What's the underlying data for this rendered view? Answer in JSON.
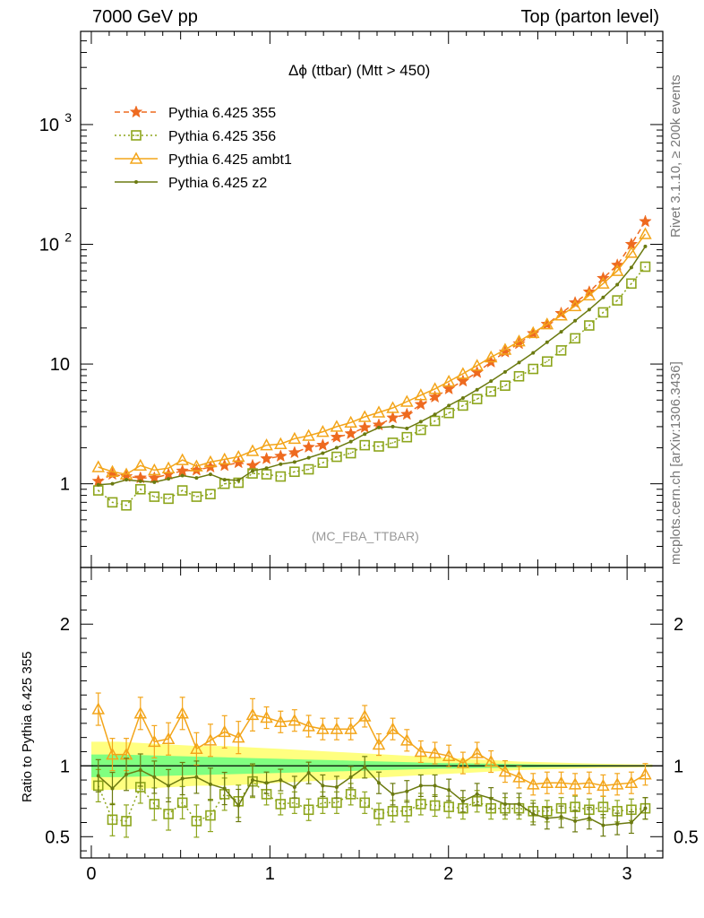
{
  "header": {
    "left": "7000 GeV pp",
    "right": "Top (parton level)"
  },
  "side": {
    "rivet": "Rivet 3.1.10, ≥ 200k events",
    "mcplots": "mcplots.cern.ch [arXiv:1306.3436]"
  },
  "watermark": "(MC_FBA_TTBAR)",
  "chart_data": {
    "type": "line",
    "title": "Δϕ (ttbar) (Mtt > 450)",
    "xlabel": "",
    "ylabel": "",
    "xlim": [
      -0.06,
      3.2
    ],
    "ylim": [
      0.2,
      6000
    ],
    "yscale": "log",
    "x_ticks": [
      "0",
      "1",
      "2",
      "3"
    ],
    "y_ticks": [
      "1",
      "10",
      "10^2",
      "10^3"
    ],
    "legend_position": "top-left",
    "x": [
      0.039,
      0.118,
      0.196,
      0.275,
      0.353,
      0.432,
      0.51,
      0.589,
      0.667,
      0.746,
      0.824,
      0.903,
      0.981,
      1.06,
      1.138,
      1.217,
      1.296,
      1.374,
      1.453,
      1.531,
      1.61,
      1.688,
      1.767,
      1.845,
      1.924,
      2.002,
      2.081,
      2.16,
      2.238,
      2.317,
      2.395,
      2.474,
      2.552,
      2.631,
      2.709,
      2.788,
      2.866,
      2.945,
      3.024,
      3.102
    ],
    "series": [
      {
        "name": "Pythia 6.425 355",
        "color": "#ee6a1f",
        "style": "dashed",
        "marker": "star",
        "values": [
          1.05,
          1.2,
          1.15,
          1.12,
          1.12,
          1.2,
          1.28,
          1.3,
          1.38,
          1.42,
          1.5,
          1.42,
          1.62,
          1.7,
          1.82,
          2.02,
          2.1,
          2.45,
          2.62,
          2.95,
          3.1,
          3.55,
          3.8,
          4.6,
          5.3,
          6.2,
          7.2,
          8.5,
          10.4,
          12.6,
          14.8,
          18,
          21.5,
          26.5,
          32.5,
          40,
          52,
          67,
          100,
          155
        ]
      },
      {
        "name": "Pythia 6.425 356",
        "color": "#8da51c",
        "style": "dotted",
        "marker": "open-square",
        "values": [
          0.88,
          0.7,
          0.66,
          0.9,
          0.78,
          0.75,
          0.88,
          0.78,
          0.82,
          1.0,
          1.02,
          1.22,
          1.2,
          1.15,
          1.26,
          1.32,
          1.5,
          1.68,
          1.8,
          2.1,
          2.05,
          2.2,
          2.45,
          2.82,
          3.35,
          3.9,
          4.5,
          5.1,
          5.9,
          6.6,
          7.9,
          9.1,
          10.5,
          13.0,
          16.4,
          21,
          27,
          34,
          47,
          65
        ]
      },
      {
        "name": "Pythia 6.425 ambt1",
        "color": "#f3a51a",
        "style": "solid",
        "marker": "open-triangle",
        "values": [
          1.38,
          1.26,
          1.2,
          1.42,
          1.3,
          1.35,
          1.58,
          1.4,
          1.52,
          1.6,
          1.68,
          1.88,
          2.1,
          2.15,
          2.38,
          2.52,
          2.72,
          3.0,
          3.25,
          3.62,
          3.95,
          4.3,
          4.85,
          5.5,
          6.2,
          7.15,
          8.3,
          9.7,
          11.4,
          13.2,
          15.5,
          18.2,
          21.5,
          25.5,
          30.5,
          37.5,
          47,
          60,
          85,
          122
        ]
      },
      {
        "name": "Pythia 6.425 z2",
        "color": "#6b7a10",
        "style": "solid",
        "marker": "dot",
        "values": [
          0.98,
          1.0,
          1.08,
          1.05,
          1.03,
          1.1,
          1.17,
          1.12,
          1.2,
          1.08,
          1.07,
          1.28,
          1.35,
          1.46,
          1.52,
          1.65,
          1.8,
          2.0,
          2.25,
          2.6,
          2.95,
          3.0,
          2.9,
          3.3,
          3.8,
          4.5,
          5.2,
          6.1,
          7.2,
          8.6,
          10.3,
          12.4,
          15.2,
          18.6,
          23,
          28.5,
          36,
          46,
          64,
          96
        ]
      }
    ],
    "ratio_panel": {
      "ylabel": "Ratio to Pythia 6.425 355",
      "ylim": [
        0.35,
        2.4
      ],
      "y_ticks": [
        "0.5",
        "1",
        "2"
      ],
      "reference_line": 1.0,
      "band_colors": {
        "outer": "#ffff80",
        "inner": "#80ff80"
      },
      "band_outer_halfwidth": [
        0.17,
        0.17,
        0.16,
        0.15,
        0.14,
        0.14,
        0.13,
        0.12,
        0.11,
        0.1,
        0.09,
        0.08,
        0.07,
        0.06,
        0.05,
        0.04,
        0.03,
        0.025,
        0.02,
        0.015,
        0.012,
        0.01
      ],
      "band_inner_halfwidth": [
        0.08,
        0.08,
        0.075,
        0.07,
        0.065,
        0.06,
        0.055,
        0.05,
        0.045,
        0.04,
        0.035,
        0.03,
        0.025,
        0.02,
        0.018,
        0.015,
        0.012,
        0.01,
        0.008,
        0.006,
        0.005,
        0.004
      ],
      "series": [
        {
          "name": "Pythia 6.425 356",
          "values": [
            0.86,
            0.62,
            0.61,
            0.85,
            0.73,
            0.66,
            0.74,
            0.61,
            0.65,
            0.8,
            0.75,
            0.89,
            0.8,
            0.73,
            0.74,
            0.69,
            0.74,
            0.74,
            0.8,
            0.74,
            0.66,
            0.68,
            0.68,
            0.73,
            0.72,
            0.71,
            0.7,
            0.75,
            0.7,
            0.7,
            0.7,
            0.68,
            0.68,
            0.7,
            0.71,
            0.69,
            0.71,
            0.68,
            0.69,
            0.7
          ]
        },
        {
          "name": "Pythia 6.425 ambt1",
          "values": [
            1.4,
            1.08,
            1.08,
            1.37,
            1.17,
            1.19,
            1.37,
            1.12,
            1.18,
            1.24,
            1.2,
            1.36,
            1.34,
            1.31,
            1.32,
            1.28,
            1.26,
            1.26,
            1.26,
            1.35,
            1.15,
            1.26,
            1.18,
            1.1,
            1.09,
            1.07,
            1.02,
            1.09,
            1.03,
            0.96,
            0.92,
            0.87,
            0.88,
            0.88,
            0.87,
            0.88,
            0.86,
            0.87,
            0.88,
            0.94
          ]
        },
        {
          "name": "Pythia 6.425 z2",
          "values": [
            0.93,
            0.84,
            0.94,
            0.97,
            0.92,
            0.86,
            0.91,
            0.92,
            0.87,
            0.84,
            0.72,
            0.9,
            0.88,
            0.9,
            0.85,
            0.95,
            0.86,
            0.85,
            0.92,
            0.99,
            0.88,
            0.8,
            0.82,
            0.86,
            0.86,
            0.83,
            0.75,
            0.8,
            0.77,
            0.73,
            0.73,
            0.66,
            0.63,
            0.64,
            0.61,
            0.63,
            0.58,
            0.59,
            0.6,
            0.7
          ]
        }
      ]
    }
  }
}
